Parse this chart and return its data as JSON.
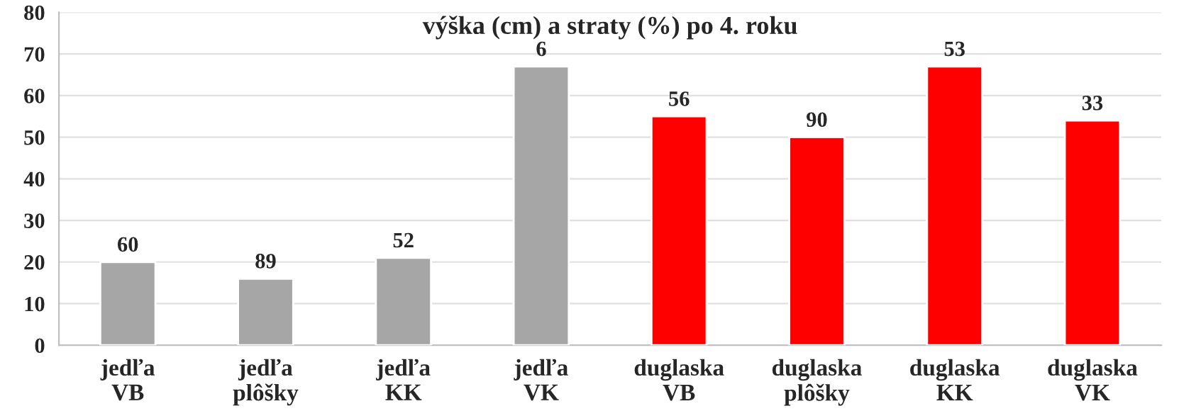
{
  "chart_data": {
    "type": "bar",
    "title": "výška (cm) a straty (%) po 4. roku",
    "categories": [
      "jedľa\nVB",
      "jedľa\nplôšky",
      "jedľa\nKK",
      "jedľa\nVK",
      "duglaska\nVB",
      "duglaska\nplôšky",
      "duglaska\nKK",
      "duglaska\nVK"
    ],
    "values": [
      20,
      16,
      21,
      67,
      55,
      50,
      67,
      54
    ],
    "colors": [
      "#a6a6a6",
      "#a6a6a6",
      "#a6a6a6",
      "#a6a6a6",
      "#ff0000",
      "#ff0000",
      "#ff0000",
      "#ff0000"
    ],
    "annotations": [
      {
        "text": "60",
        "x": "jedľa\nVB",
        "y": 20
      },
      {
        "text": "89",
        "x": "jedľa\nplôšky",
        "y": 16
      },
      {
        "text": "52",
        "x": "jedľa\nKK",
        "y": 21
      },
      {
        "text": "6",
        "x": "jedľa\nVK",
        "y": 67
      },
      {
        "text": "56",
        "x": "duglaska\nVB",
        "y": 55
      },
      {
        "text": "90",
        "x": "duglaska\nplôšky",
        "y": 50
      },
      {
        "text": "53",
        "x": "duglaska\nKK",
        "y": 67
      },
      {
        "text": "33",
        "x": "duglaska\nVK",
        "y": 54
      }
    ],
    "ylim": [
      0,
      80
    ],
    "yticks": [
      0,
      10,
      20,
      30,
      40,
      50,
      60,
      70,
      80
    ],
    "grid": "y"
  }
}
